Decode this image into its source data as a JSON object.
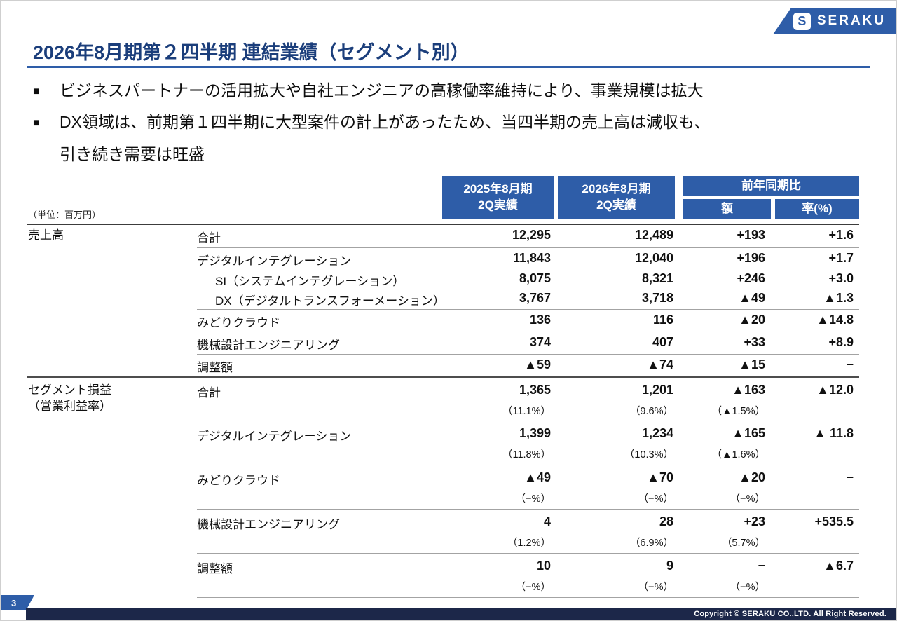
{
  "logo": {
    "text": "SERAKU",
    "mark": "S"
  },
  "title": "2026年8月期第２四半期 連結業績（セグメント別）",
  "colors": {
    "accent_blue": "#2e5da8",
    "title_blue": "#1b3e7b",
    "footer_navy": "#1c2749"
  },
  "bullets": [
    {
      "marker": "■",
      "text": "ビジネスパートナーの活用拡大や自社エンジニアの高稼働率維持により、事業規模は拡大"
    },
    {
      "marker": "■",
      "text": "DX領域は、前期第１四半期に大型案件の計上があったため、当四半期の売上高は減収も、"
    },
    {
      "marker": "",
      "text": "引き続き需要は旺盛"
    }
  ],
  "table": {
    "unit_note": "（単位：百万円）",
    "headers": {
      "col_2025": [
        "2025年8月期",
        "2Q実績"
      ],
      "col_2026": [
        "2026年8月期",
        "2Q実績"
      ],
      "yoy": "前年同期比",
      "yoy_amount": "額",
      "yoy_rate": "率(%)"
    },
    "rows": [
      {
        "group": "売上高",
        "group2": "",
        "label": "合計",
        "indent": false,
        "line": "none",
        "values": [
          "12,295",
          "12,489",
          "+193",
          "+1.6"
        ],
        "sub": null
      },
      {
        "group": "",
        "group2": "",
        "label": "デジタルインテグレーション",
        "indent": false,
        "line": "thin",
        "values": [
          "11,843",
          "12,040",
          "+196",
          "+1.7"
        ],
        "sub": null
      },
      {
        "group": "",
        "group2": "",
        "label": "SI（システムインテグレーション）",
        "indent": true,
        "line": "none",
        "values": [
          "8,075",
          "8,321",
          "+246",
          "+3.0"
        ],
        "sub": null
      },
      {
        "group": "",
        "group2": "",
        "label": "DX（デジタルトランスフォーメーション）",
        "indent": true,
        "line": "none",
        "values": [
          "3,767",
          "3,718",
          "▲49",
          "▲1.3"
        ],
        "sub": null
      },
      {
        "group": "",
        "group2": "",
        "label": "みどりクラウド",
        "indent": false,
        "line": "thin",
        "values": [
          "136",
          "116",
          "▲20",
          "▲14.8"
        ],
        "sub": null
      },
      {
        "group": "",
        "group2": "",
        "label": "機械設計エンジニアリング",
        "indent": false,
        "line": "thin",
        "values": [
          "374",
          "407",
          "+33",
          "+8.9"
        ],
        "sub": null
      },
      {
        "group": "",
        "group2": "",
        "label": "調整額",
        "indent": false,
        "line": "thin",
        "values": [
          "▲59",
          "▲74",
          "▲15",
          "−"
        ],
        "sub": null
      },
      {
        "group": "セグメント損益",
        "group2": "（営業利益率）",
        "label": "合計",
        "indent": false,
        "line": "dark",
        "values": [
          "1,365",
          "1,201",
          "▲163",
          "▲12.0"
        ],
        "sub": [
          "（11.1%）",
          "（9.6%）",
          "（▲1.5%）",
          ""
        ]
      },
      {
        "group": "",
        "group2": "",
        "label": "デジタルインテグレーション",
        "indent": false,
        "line": "thin",
        "values": [
          "1,399",
          "1,234",
          "▲165",
          "▲ 11.8"
        ],
        "sub": [
          "（11.8%）",
          "（10.3%）",
          "（▲1.6%）",
          ""
        ]
      },
      {
        "group": "",
        "group2": "",
        "label": "みどりクラウド",
        "indent": false,
        "line": "thin",
        "values": [
          "▲49",
          "▲70",
          "▲20",
          "−"
        ],
        "sub": [
          "（−%）",
          "（−%）",
          "（−%）",
          ""
        ]
      },
      {
        "group": "",
        "group2": "",
        "label": "機械設計エンジニアリング",
        "indent": false,
        "line": "thin",
        "values": [
          "4",
          "28",
          "+23",
          "+535.5"
        ],
        "sub": [
          "（1.2%）",
          "（6.9%）",
          "（5.7%）",
          ""
        ]
      },
      {
        "group": "",
        "group2": "",
        "label": "調整額",
        "indent": false,
        "line": "thin",
        "values": [
          "10",
          "9",
          "−",
          "▲6.7"
        ],
        "sub": [
          "（−%）",
          "（−%）",
          "（−%）",
          ""
        ]
      }
    ]
  },
  "footer": {
    "page": "3",
    "copyright": "Copyright © SERAKU CO.,LTD.  All Right Reserved."
  }
}
